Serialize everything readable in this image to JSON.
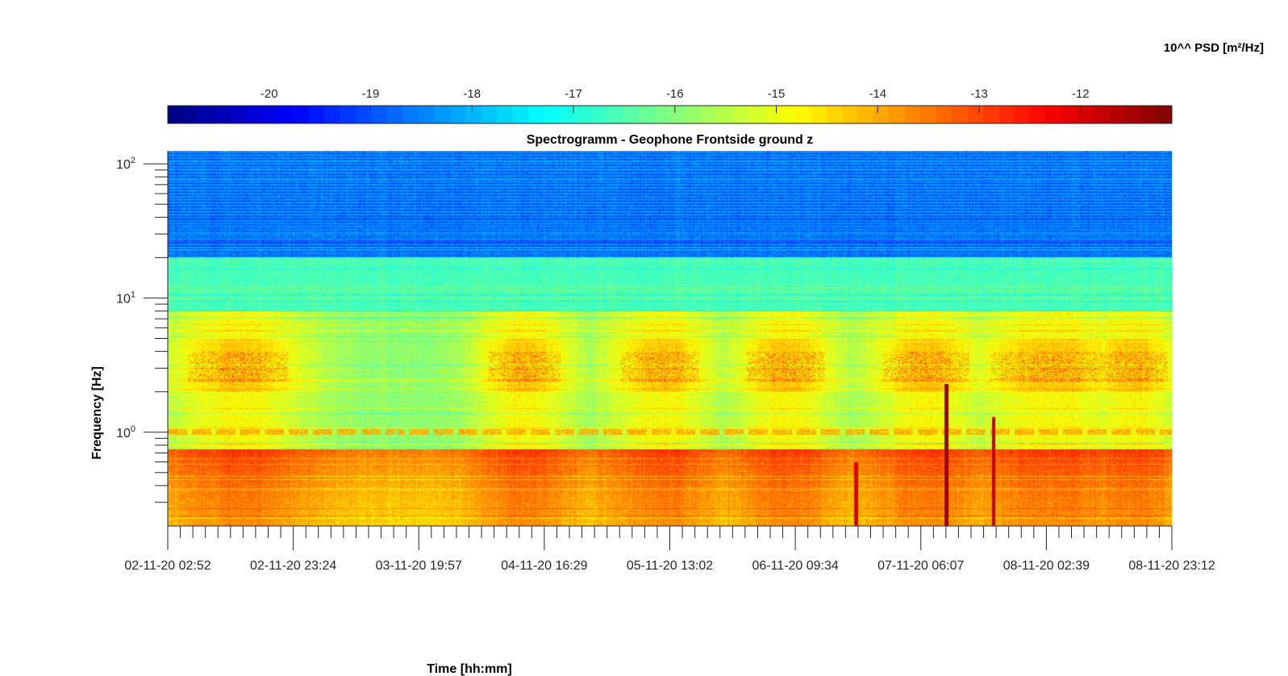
{
  "chart_data": {
    "type": "heatmap",
    "title": "Spectrogramm - Geophone Frontside ground z",
    "xlabel": "Time [hh:mm]",
    "ylabel": "Frequency [Hz]",
    "y_scale": "log",
    "y_tick_labels": [
      {
        "base": "10",
        "exp": "2",
        "value": 100
      },
      {
        "base": "10",
        "exp": "1",
        "value": 10
      },
      {
        "base": "10",
        "exp": "0",
        "value": 1
      }
    ],
    "ylim": [
      0.2,
      125
    ],
    "x_tick_labels": [
      "02-11-20 02:52",
      "02-11-20 23:24",
      "03-11-20 19:57",
      "04-11-20 16:29",
      "05-11-20 13:02",
      "06-11-20 09:34",
      "07-11-20 06:07",
      "08-11-20 02:39",
      "08-11-20 23:12"
    ],
    "xlim": [
      "02-11-20 02:52",
      "08-11-20 23:12"
    ],
    "colorbar": {
      "label": "10^^ PSD [m²/Hz]",
      "tick_labels": [
        "-20",
        "-19",
        "-18",
        "-17",
        "-16",
        "-15",
        "-14",
        "-13",
        "-12"
      ],
      "ticks": [
        -20,
        -19,
        -18,
        -17,
        -16,
        -15,
        -14,
        -13,
        -12
      ],
      "range": [
        -21,
        -11.1
      ],
      "colormap": "jet",
      "location": "top"
    },
    "features": {
      "low_band_below_0_7_Hz": -13.2,
      "band_1_to_6_Hz_day": -14.8,
      "band_1_to_6_Hz_night": -15.9,
      "band_8_to_20_Hz": -16.6,
      "band_above_20_Hz": -18.6,
      "line_1_Hz": -14.0,
      "spikes": [
        {
          "time": "07-11-20 01:00",
          "value": -12.0
        },
        {
          "time": "07-11-20 08:30",
          "value": -11.4
        },
        {
          "time": "07-11-20 12:50",
          "value": -11.8
        }
      ]
    }
  }
}
